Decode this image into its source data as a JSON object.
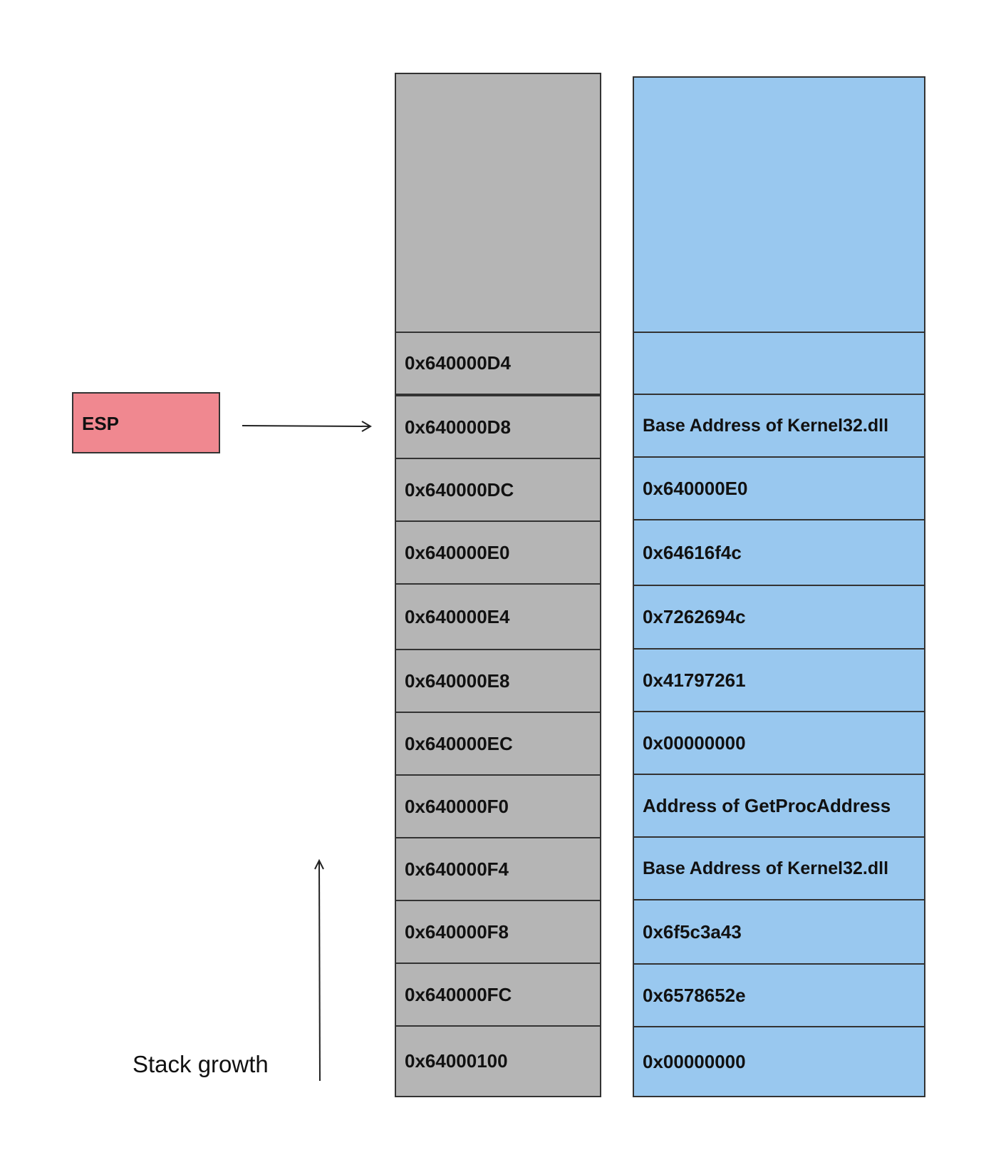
{
  "esp": {
    "label": "ESP",
    "color": "#f08890"
  },
  "stack_growth_label": "Stack growth",
  "colors": {
    "address_column": "#b5b5b5",
    "value_column": "#99c8ef",
    "border": "#333333"
  },
  "stack": {
    "addresses": [
      "",
      "0x640000D4",
      "0x640000D8",
      "0x640000DC",
      "0x640000E0",
      "0x640000E4",
      "0x640000E8",
      "0x640000EC",
      "0x640000F0",
      "0x640000F4",
      "0x640000F8",
      "0x640000FC",
      "0x64000100"
    ],
    "values": [
      "",
      "",
      "Base Address of Kernel32.dll",
      "0x640000E0",
      "0x64616f4c",
      "0x7262694c",
      "0x41797261",
      "0x00000000",
      "Address of GetProcAddress",
      "Base Address of Kernel32.dll",
      "0x6f5c3a43",
      "0x6578652e",
      "0x00000000"
    ],
    "esp_points_to": "0x640000D8"
  }
}
